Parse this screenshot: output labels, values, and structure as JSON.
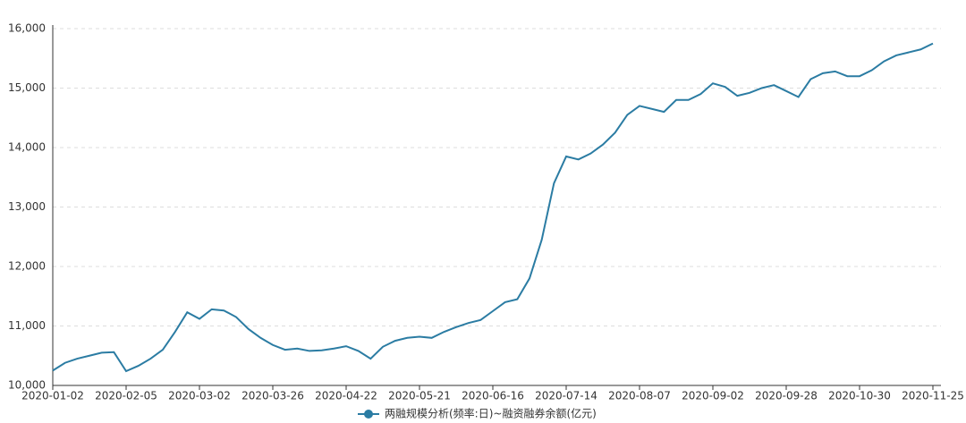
{
  "chart_data": {
    "type": "line",
    "categories": [
      "2020-01-02",
      null,
      null,
      null,
      null,
      null,
      "2020-02-05",
      null,
      null,
      null,
      null,
      null,
      "2020-03-02",
      null,
      null,
      null,
      null,
      null,
      "2020-03-26",
      null,
      null,
      null,
      null,
      null,
      "2020-04-22",
      null,
      null,
      null,
      null,
      null,
      "2020-05-21",
      null,
      null,
      null,
      null,
      null,
      "2020-06-16",
      null,
      null,
      null,
      null,
      null,
      "2020-07-14",
      null,
      null,
      null,
      null,
      null,
      "2020-08-07",
      null,
      null,
      null,
      null,
      null,
      "2020-09-02",
      null,
      null,
      null,
      null,
      null,
      "2020-09-28",
      null,
      null,
      null,
      null,
      null,
      "2020-10-30",
      null,
      null,
      null,
      null,
      null,
      "2020-11-25"
    ],
    "series": [
      {
        "name": "两融规模分析(频率:日)~融资融券余额(亿元)",
        "color": "#2b7ca3",
        "values": [
          10250,
          10380,
          10450,
          10500,
          10550,
          10560,
          10240,
          10330,
          10450,
          10600,
          10900,
          11230,
          11120,
          11280,
          11260,
          11150,
          10950,
          10800,
          10680,
          10600,
          10620,
          10580,
          10590,
          10620,
          10660,
          10580,
          10450,
          10650,
          10750,
          10800,
          10820,
          10800,
          10900,
          10980,
          11050,
          11100,
          11250,
          11400,
          11450,
          11800,
          12450,
          13400,
          13850,
          13800,
          13900,
          14050,
          14250,
          14550,
          14700,
          14650,
          14600,
          14800,
          14800,
          14900,
          15080,
          15020,
          14870,
          14920,
          15000,
          15050,
          14950,
          14850,
          15150,
          15250,
          15280,
          15200,
          15200,
          15300,
          15450,
          15550,
          15600,
          15650,
          15750
        ]
      }
    ],
    "ylim": [
      10000,
      16000
    ],
    "yticks": [
      {
        "value": 10000,
        "label": "10,000"
      },
      {
        "value": 11000,
        "label": "11,000"
      },
      {
        "value": 12000,
        "label": "12,000"
      },
      {
        "value": 13000,
        "label": "13,000"
      },
      {
        "value": 14000,
        "label": "14,000"
      },
      {
        "value": 15000,
        "label": "15,000"
      },
      {
        "value": 16000,
        "label": "16,000"
      }
    ],
    "grid": true
  }
}
